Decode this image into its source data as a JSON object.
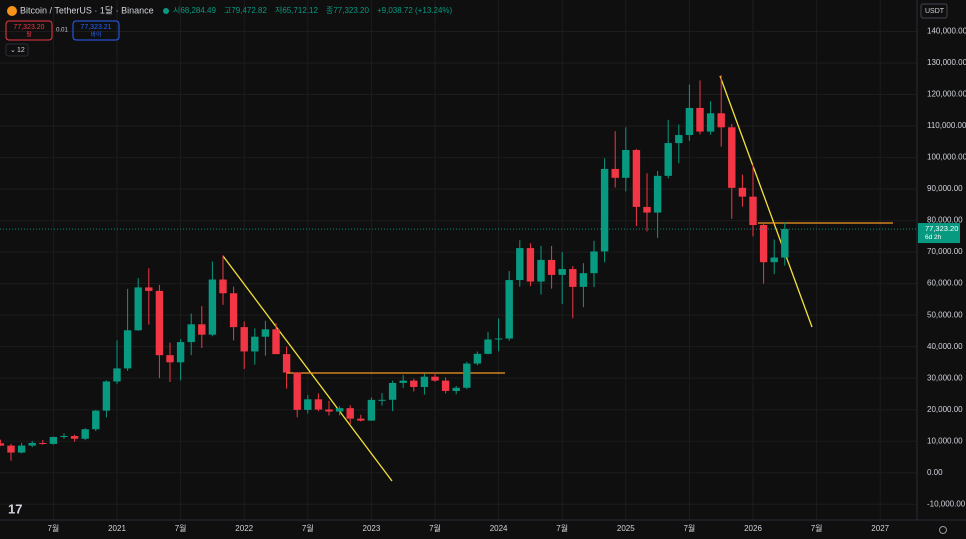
{
  "chart_data": {
    "type": "candlestick",
    "title": "Bitcoin / TetherUS · 1달 · Binance",
    "ohlc_text": [
      "시68,284.49",
      "고79,472.82",
      "저65,712.12",
      "종77,323.20",
      "+9,038.72 (+13.24%)"
    ],
    "sell_price": "77,323.20",
    "sell_label": "팔",
    "spread": "0.01",
    "buy_price": "77,323.21",
    "buy_label": "바이",
    "indicator_count": "12",
    "currency": "USDT",
    "last_price_label": "77,323.20",
    "countdown": "6d 2h",
    "up_color": "#089981",
    "down_color": "#f23645",
    "x": [
      "2020-02",
      "2020-03",
      "2020-04",
      "2020-05",
      "2020-06",
      "2020-07",
      "2020-08",
      "2020-09",
      "2020-10",
      "2020-11",
      "2020-12",
      "2021-01",
      "2021-02",
      "2021-03",
      "2021-04",
      "2021-05",
      "2021-06",
      "2021-07",
      "2021-08",
      "2021-09",
      "2021-10",
      "2021-11",
      "2021-12",
      "2022-01",
      "2022-02",
      "2022-03",
      "2022-04",
      "2022-05",
      "2022-06",
      "2022-07",
      "2022-08",
      "2022-09",
      "2022-10",
      "2022-11",
      "2022-12",
      "2023-01",
      "2023-02",
      "2023-03",
      "2023-04",
      "2023-05",
      "2023-06",
      "2023-07",
      "2023-08",
      "2023-09",
      "2023-10",
      "2023-11",
      "2023-12",
      "2024-01",
      "2024-02",
      "2024-03",
      "2024-04",
      "2024-05",
      "2024-06",
      "2024-07",
      "2024-08",
      "2024-09",
      "2024-10",
      "2024-11",
      "2024-12",
      "2025-01",
      "2025-02",
      "2025-03",
      "2025-04",
      "2025-05",
      "2025-06",
      "2025-07",
      "2025-08",
      "2025-09",
      "2025-10",
      "2025-11",
      "2025-12",
      "2026-01",
      "2026-02",
      "2026-03",
      "2026-04"
    ],
    "open": [
      9350,
      8600,
      6400,
      8620,
      9450,
      9140,
      11350,
      11650,
      10780,
      13800,
      19700,
      28950,
      33100,
      45200,
      58800,
      57700,
      37300,
      35040,
      41460,
      47100,
      43800,
      61300,
      56950,
      46200,
      38480,
      43160,
      45510,
      37630,
      31800,
      19940,
      23300,
      20050,
      19420,
      20490,
      17160,
      16540,
      23120,
      23140,
      28480,
      29230,
      27210,
      30470,
      29230,
      25940,
      26960,
      34640,
      37720,
      42280,
      42580,
      61130,
      71280,
      60670,
      67530,
      62770,
      64630,
      58970,
      63330,
      70220,
      96400,
      93580,
      102400,
      84350,
      82550,
      94200,
      104600,
      107150,
      115750,
      108250,
      114050,
      109600,
      90400,
      87600,
      78600,
      66800,
      68284.49
    ],
    "high": [
      10500,
      9200,
      9500,
      10080,
      10400,
      11450,
      12470,
      12080,
      14100,
      19900,
      29300,
      42000,
      58350,
      61800,
      64900,
      59600,
      41300,
      42400,
      50500,
      52900,
      67000,
      69000,
      59050,
      47990,
      45800,
      48200,
      47450,
      40000,
      31990,
      24700,
      25200,
      22800,
      21100,
      21450,
      18400,
      23950,
      25250,
      29200,
      31000,
      29820,
      31390,
      31800,
      30200,
      27500,
      35200,
      38450,
      44700,
      48970,
      64000,
      73780,
      72800,
      71980,
      71950,
      70000,
      65600,
      66500,
      73600,
      99800,
      108350,
      109600,
      102750,
      95000,
      95750,
      111980,
      110500,
      123200,
      124450,
      117900,
      126200,
      110700,
      94600,
      97900,
      79500,
      74000,
      79472.82
    ],
    "low": [
      8450,
      3800,
      6150,
      8100,
      8900,
      8900,
      10800,
      9850,
      10370,
      13200,
      17600,
      28100,
      32300,
      45000,
      47000,
      30000,
      28800,
      29300,
      37300,
      39600,
      43300,
      53250,
      42000,
      32900,
      34300,
      37150,
      37700,
      26700,
      17600,
      18800,
      19500,
      18150,
      18200,
      15480,
      16250,
      16500,
      21350,
      19550,
      26940,
      25800,
      24800,
      28860,
      25170,
      24900,
      26550,
      34100,
      37600,
      38550,
      41880,
      59000,
      59190,
      56550,
      58400,
      53550,
      49000,
      52550,
      58900,
      66800,
      90500,
      89260,
      78260,
      76600,
      74500,
      93400,
      98200,
      105300,
      107350,
      107250,
      103500,
      80600,
      84400,
      75000,
      60000,
      63000,
      65712.12
    ],
    "close": [
      8600,
      6400,
      8620,
      9450,
      9140,
      11350,
      11650,
      10780,
      13800,
      19700,
      28950,
      33100,
      45200,
      58800,
      57700,
      37300,
      35040,
      41460,
      47100,
      43800,
      61300,
      56950,
      46200,
      38480,
      43160,
      45510,
      37630,
      31800,
      19940,
      23300,
      20050,
      19420,
      20490,
      17160,
      16540,
      23120,
      23140,
      28480,
      29230,
      27210,
      30470,
      29230,
      25940,
      26960,
      34640,
      37720,
      42280,
      42580,
      61130,
      71280,
      60670,
      67530,
      62770,
      64630,
      58970,
      63330,
      70220,
      96400,
      93580,
      102400,
      84350,
      82550,
      94200,
      104600,
      107150,
      115750,
      108250,
      114050,
      109600,
      90400,
      87600,
      78600,
      66800,
      68284.49,
      77323.2
    ],
    "ylim": [
      -15000,
      150000
    ],
    "yticks": [
      {
        "value": -10000,
        "label": "-10,000.00"
      },
      {
        "value": 0,
        "label": "0.00"
      },
      {
        "value": 10000,
        "label": "10,000.00"
      },
      {
        "value": 20000,
        "label": "20,000.00"
      },
      {
        "value": 30000,
        "label": "30,000.00"
      },
      {
        "value": 40000,
        "label": "40,000.00"
      },
      {
        "value": 50000,
        "label": "50,000.00"
      },
      {
        "value": 60000,
        "label": "60,000.00"
      },
      {
        "value": 70000,
        "label": "70,000.00"
      },
      {
        "value": 80000,
        "label": "80,000.00"
      },
      {
        "value": 90000,
        "label": "90,000.00"
      },
      {
        "value": 100000,
        "label": "100,000.00"
      },
      {
        "value": 110000,
        "label": "110,000.00"
      },
      {
        "value": 120000,
        "label": "120,000.00"
      },
      {
        "value": 130000,
        "label": "130,000.00"
      },
      {
        "value": 140000,
        "label": "140,000.00"
      }
    ],
    "xticks": [
      {
        "value": "2020-07",
        "label": "7월"
      },
      {
        "value": "2021-01",
        "label": "2021"
      },
      {
        "value": "2021-07",
        "label": "7월"
      },
      {
        "value": "2022-01",
        "label": "2022"
      },
      {
        "value": "2022-07",
        "label": "7월"
      },
      {
        "value": "2023-01",
        "label": "2023"
      },
      {
        "value": "2023-07",
        "label": "7월"
      },
      {
        "value": "2024-01",
        "label": "2024"
      },
      {
        "value": "2024-07",
        "label": "7월"
      },
      {
        "value": "2025-01",
        "label": "2025"
      },
      {
        "value": "2025-07",
        "label": "7월"
      },
      {
        "value": "2026-01",
        "label": "2026"
      },
      {
        "value": "2026-07",
        "label": "7월"
      },
      {
        "value": "2027-01",
        "label": "2027"
      }
    ],
    "grid": true
  }
}
